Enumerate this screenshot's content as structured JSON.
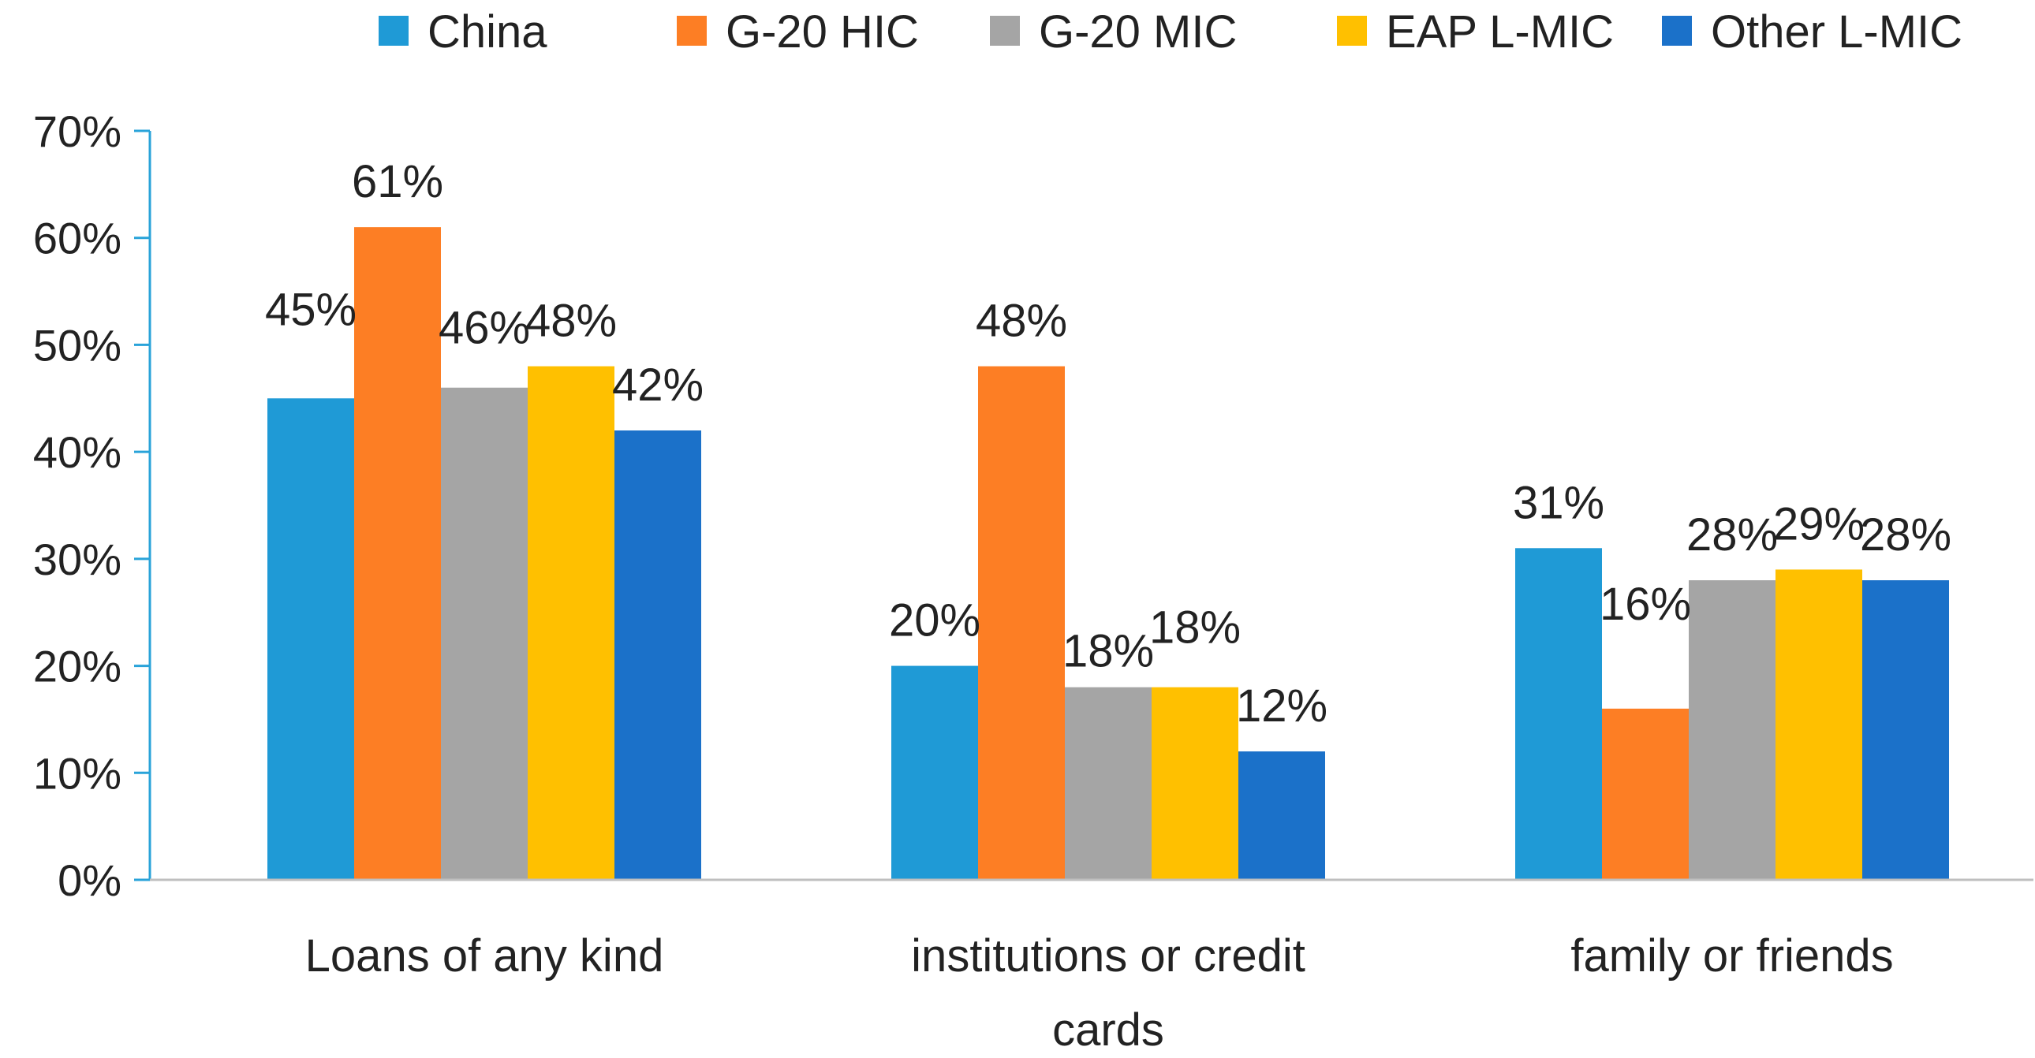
{
  "chart_data": {
    "type": "bar",
    "title": "",
    "xlabel": "",
    "ylabel": "",
    "ylim": [
      0,
      70
    ],
    "yticks": [
      0,
      10,
      20,
      30,
      40,
      50,
      60,
      70
    ],
    "ytick_labels": [
      "0%",
      "10%",
      "20%",
      "30%",
      "40%",
      "50%",
      "60%",
      "70%"
    ],
    "grid": false,
    "legend_position": "top",
    "categories": [
      [
        "Loans of any kind"
      ],
      [
        "institutions or credit",
        "cards"
      ],
      [
        "family or friends"
      ]
    ],
    "series": [
      {
        "name": "China",
        "color": "#1f9ad6",
        "values": [
          45,
          20,
          31
        ],
        "labels": [
          "45%",
          "20%",
          "31%"
        ]
      },
      {
        "name": "G-20 HIC",
        "color": "#fd7e24",
        "values": [
          61,
          48,
          16
        ],
        "labels": [
          "61%",
          "48%",
          "16%"
        ]
      },
      {
        "name": "G-20 MIC",
        "color": "#a5a5a5",
        "values": [
          46,
          18,
          28
        ],
        "labels": [
          "46%",
          "18%",
          "28%"
        ]
      },
      {
        "name": "EAP L-MIC",
        "color": "#ffc000",
        "values": [
          48,
          18,
          29
        ],
        "labels": [
          "48%",
          "18%",
          "29%"
        ]
      },
      {
        "name": "Other L-MIC",
        "color": "#1b71c9",
        "values": [
          42,
          12,
          28
        ],
        "labels": [
          "42%",
          "12%",
          "28%"
        ]
      }
    ],
    "axis_color": "#29a3d9"
  }
}
